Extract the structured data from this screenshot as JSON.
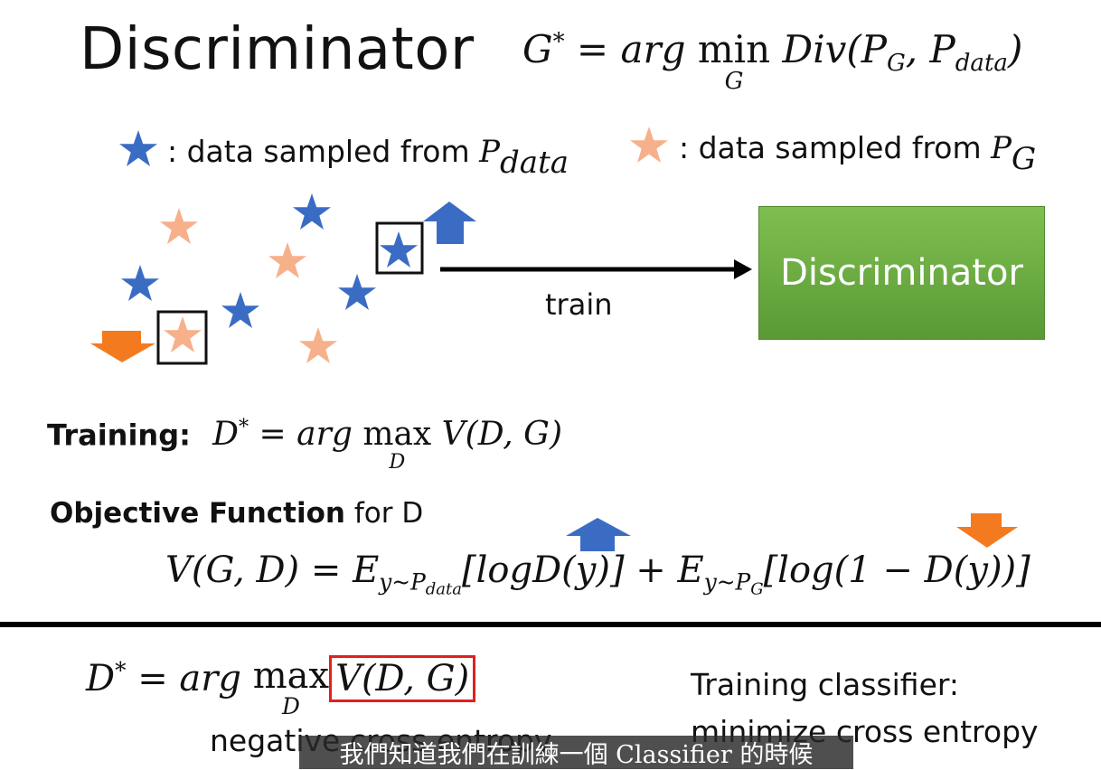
{
  "title": "Discriminator",
  "top_equation": {
    "lhs": "G",
    "sup": "*",
    "eq": " = ",
    "arg": "arg ",
    "op": "min",
    "under": "G",
    "fn": "Div(P",
    "sub1": "G",
    "mid": ", P",
    "sub2": "data",
    "end": ")"
  },
  "legend": {
    "blue_text": ": data sampled from ",
    "blue_var": "P",
    "blue_sub": "data",
    "orange_text": ": data sampled from ",
    "orange_var": "P",
    "orange_sub": "G"
  },
  "train_label": "train",
  "discriminator_box_label": "Discriminator",
  "training": {
    "label": "Training:",
    "lhs": "D",
    "sup": "*",
    "eq": " = arg ",
    "op": "max",
    "under": "D",
    "rhs": "V(D, G)"
  },
  "objective": {
    "bold": "Objective Function",
    "rest": " for D"
  },
  "value_function": {
    "lhs": "V(G, D) = E",
    "sub1": "y~P",
    "sub1b": "data",
    "mid": "[logD(y)] + E",
    "sub2": "y~P",
    "sub2b": "G",
    "end": "[log(1 − D(y))]"
  },
  "bottom_equation": {
    "lhs": "D",
    "sup": "*",
    "eq": " = arg ",
    "op": "max",
    "under": "D",
    "boxed": "V(D, G)"
  },
  "negative_label": "negative cross entropy",
  "classifier_line1": "Training classifier:",
  "classifier_line2": "minimize cross entropy",
  "subtitle": "我們知道我們在訓練一個 Classifier 的時候",
  "colors": {
    "blue_star": "#3b6cc4",
    "orange_star": "#f6b08a",
    "green_box": "#6aab3f",
    "orange_arrow": "#f47a20",
    "blue_arrow": "#3b6cc4",
    "red_box": "#e02020"
  },
  "icons": [
    "blue-star-icon",
    "orange-star-icon",
    "up-arrow-icon",
    "down-arrow-icon",
    "right-arrow-icon"
  ]
}
